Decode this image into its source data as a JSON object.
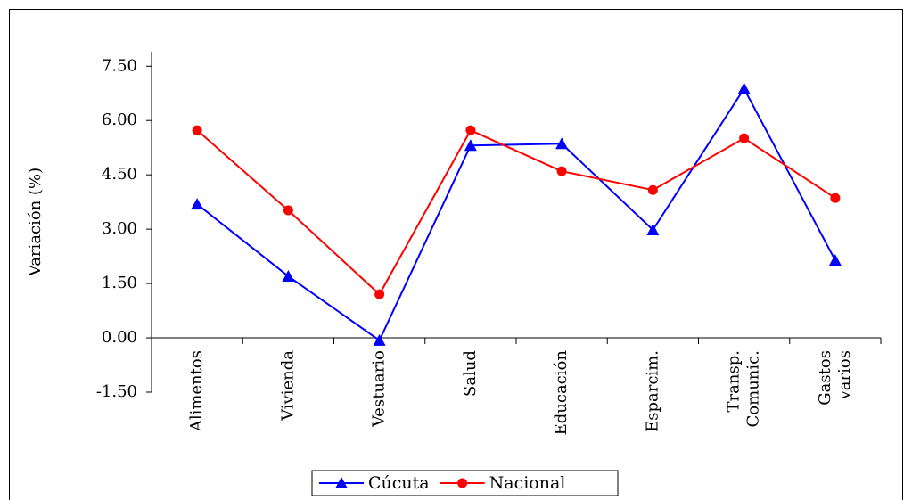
{
  "chart_data": {
    "type": "line",
    "y_label": "Variación (%)",
    "categories": [
      "Alimentos",
      "Vivienda",
      "Vestuario",
      "Salud",
      "Educación",
      "Esparcim.",
      "Transp. Comunic.",
      "Gastos varios"
    ],
    "series": [
      {
        "name": "Cúcuta",
        "color": "#0000ff",
        "marker": "triangle",
        "values": [
          3.69,
          1.7,
          -0.07,
          5.31,
          5.36,
          2.98,
          6.88,
          2.14
        ]
      },
      {
        "name": "Nacional",
        "color": "#ff0000",
        "marker": "circle",
        "values": [
          5.73,
          3.52,
          1.2,
          5.73,
          4.6,
          4.08,
          5.51,
          3.86
        ]
      }
    ],
    "ylim": [
      -1.5,
      7.9
    ],
    "yticks": [
      {
        "value": -1.5,
        "label": "-1.50"
      },
      {
        "value": 0,
        "label": "0.00"
      },
      {
        "value": 1.5,
        "label": "1.50"
      },
      {
        "value": 3,
        "label": "3.00"
      },
      {
        "value": 4.5,
        "label": "4.50"
      },
      {
        "value": 6,
        "label": "6.00"
      },
      {
        "value": 7.5,
        "label": "7.50"
      }
    ],
    "legend": "bottom"
  }
}
